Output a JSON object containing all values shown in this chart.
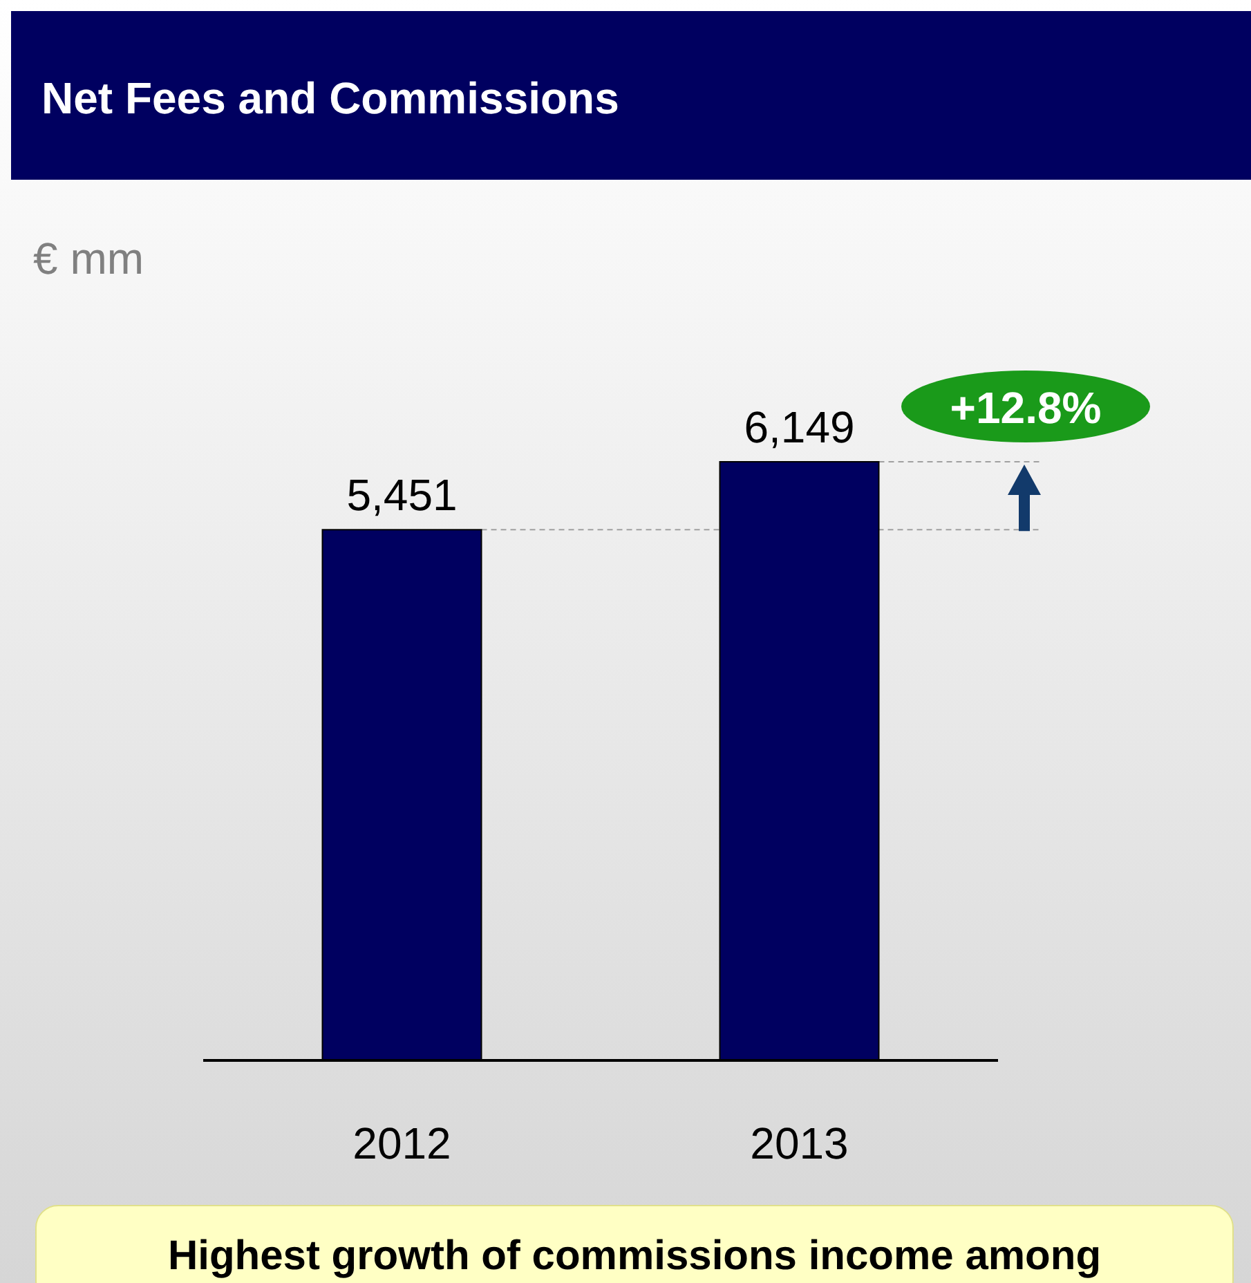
{
  "chart_data": {
    "type": "bar",
    "title": "Net Fees and Commissions",
    "categories": [
      "2012",
      "2013"
    ],
    "values": [
      5451,
      6149
    ],
    "color": "#000060",
    "value_labels": [
      "5,451",
      "6,149"
    ],
    "ref_lines": [
      {
        "axis": "y",
        "value": 5451,
        "color": "#a0a0a0",
        "line_style": "dashed"
      },
      {
        "axis": "y",
        "value": 6149,
        "color": "#a0a0a0",
        "line_style": "dashed"
      }
    ],
    "annotations": [
      "€ mm",
      "+12.8%",
      "Highest growth of commissions income among"
    ]
  }
}
